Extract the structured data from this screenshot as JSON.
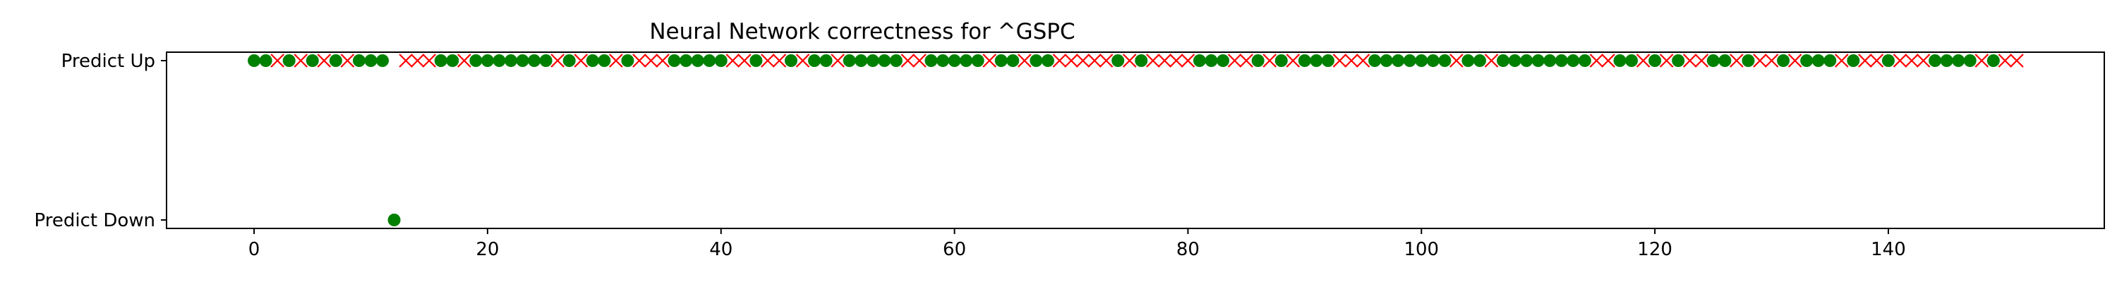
{
  "chart_data": {
    "type": "scatter",
    "title": "Neural Network correctness for ^GSPC",
    "xlabel": "",
    "ylabel": "",
    "xlim": [
      -7.5,
      158.5
    ],
    "x_ticks": [
      0,
      20,
      40,
      60,
      80,
      100,
      120,
      140
    ],
    "y_categories": [
      "Predict Down",
      "Predict Up"
    ],
    "grid": false,
    "legend": "none",
    "series": [
      {
        "marker": "circle",
        "color": "#008000",
        "points": [
          {
            "x": 0,
            "y": "Predict Up"
          },
          {
            "x": 1,
            "y": "Predict Up"
          },
          {
            "x": 3,
            "y": "Predict Up"
          },
          {
            "x": 5,
            "y": "Predict Up"
          },
          {
            "x": 7,
            "y": "Predict Up"
          },
          {
            "x": 9,
            "y": "Predict Up"
          },
          {
            "x": 10,
            "y": "Predict Up"
          },
          {
            "x": 11,
            "y": "Predict Up"
          },
          {
            "x": 12,
            "y": "Predict Down"
          },
          {
            "x": 16,
            "y": "Predict Up"
          },
          {
            "x": 17,
            "y": "Predict Up"
          },
          {
            "x": 19,
            "y": "Predict Up"
          },
          {
            "x": 20,
            "y": "Predict Up"
          },
          {
            "x": 21,
            "y": "Predict Up"
          },
          {
            "x": 22,
            "y": "Predict Up"
          },
          {
            "x": 23,
            "y": "Predict Up"
          },
          {
            "x": 24,
            "y": "Predict Up"
          },
          {
            "x": 25,
            "y": "Predict Up"
          },
          {
            "x": 27,
            "y": "Predict Up"
          },
          {
            "x": 29,
            "y": "Predict Up"
          },
          {
            "x": 30,
            "y": "Predict Up"
          },
          {
            "x": 32,
            "y": "Predict Up"
          },
          {
            "x": 36,
            "y": "Predict Up"
          },
          {
            "x": 37,
            "y": "Predict Up"
          },
          {
            "x": 38,
            "y": "Predict Up"
          },
          {
            "x": 39,
            "y": "Predict Up"
          },
          {
            "x": 40,
            "y": "Predict Up"
          },
          {
            "x": 43,
            "y": "Predict Up"
          },
          {
            "x": 46,
            "y": "Predict Up"
          },
          {
            "x": 48,
            "y": "Predict Up"
          },
          {
            "x": 49,
            "y": "Predict Up"
          },
          {
            "x": 51,
            "y": "Predict Up"
          },
          {
            "x": 52,
            "y": "Predict Up"
          },
          {
            "x": 53,
            "y": "Predict Up"
          },
          {
            "x": 54,
            "y": "Predict Up"
          },
          {
            "x": 55,
            "y": "Predict Up"
          },
          {
            "x": 58,
            "y": "Predict Up"
          },
          {
            "x": 59,
            "y": "Predict Up"
          },
          {
            "x": 60,
            "y": "Predict Up"
          },
          {
            "x": 61,
            "y": "Predict Up"
          },
          {
            "x": 62,
            "y": "Predict Up"
          },
          {
            "x": 64,
            "y": "Predict Up"
          },
          {
            "x": 65,
            "y": "Predict Up"
          },
          {
            "x": 67,
            "y": "Predict Up"
          },
          {
            "x": 68,
            "y": "Predict Up"
          },
          {
            "x": 74,
            "y": "Predict Up"
          },
          {
            "x": 76,
            "y": "Predict Up"
          },
          {
            "x": 81,
            "y": "Predict Up"
          },
          {
            "x": 82,
            "y": "Predict Up"
          },
          {
            "x": 83,
            "y": "Predict Up"
          },
          {
            "x": 86,
            "y": "Predict Up"
          },
          {
            "x": 88,
            "y": "Predict Up"
          },
          {
            "x": 90,
            "y": "Predict Up"
          },
          {
            "x": 91,
            "y": "Predict Up"
          },
          {
            "x": 92,
            "y": "Predict Up"
          },
          {
            "x": 96,
            "y": "Predict Up"
          },
          {
            "x": 97,
            "y": "Predict Up"
          },
          {
            "x": 98,
            "y": "Predict Up"
          },
          {
            "x": 99,
            "y": "Predict Up"
          },
          {
            "x": 100,
            "y": "Predict Up"
          },
          {
            "x": 101,
            "y": "Predict Up"
          },
          {
            "x": 102,
            "y": "Predict Up"
          },
          {
            "x": 104,
            "y": "Predict Up"
          },
          {
            "x": 105,
            "y": "Predict Up"
          },
          {
            "x": 107,
            "y": "Predict Up"
          },
          {
            "x": 108,
            "y": "Predict Up"
          },
          {
            "x": 109,
            "y": "Predict Up"
          },
          {
            "x": 110,
            "y": "Predict Up"
          },
          {
            "x": 111,
            "y": "Predict Up"
          },
          {
            "x": 112,
            "y": "Predict Up"
          },
          {
            "x": 113,
            "y": "Predict Up"
          },
          {
            "x": 114,
            "y": "Predict Up"
          },
          {
            "x": 117,
            "y": "Predict Up"
          },
          {
            "x": 118,
            "y": "Predict Up"
          },
          {
            "x": 120,
            "y": "Predict Up"
          },
          {
            "x": 122,
            "y": "Predict Up"
          },
          {
            "x": 125,
            "y": "Predict Up"
          },
          {
            "x": 126,
            "y": "Predict Up"
          },
          {
            "x": 128,
            "y": "Predict Up"
          },
          {
            "x": 131,
            "y": "Predict Up"
          },
          {
            "x": 133,
            "y": "Predict Up"
          },
          {
            "x": 134,
            "y": "Predict Up"
          },
          {
            "x": 135,
            "y": "Predict Up"
          },
          {
            "x": 137,
            "y": "Predict Up"
          },
          {
            "x": 140,
            "y": "Predict Up"
          },
          {
            "x": 144,
            "y": "Predict Up"
          },
          {
            "x": 145,
            "y": "Predict Up"
          },
          {
            "x": 146,
            "y": "Predict Up"
          },
          {
            "x": 147,
            "y": "Predict Up"
          },
          {
            "x": 149,
            "y": "Predict Up"
          }
        ]
      },
      {
        "marker": "x",
        "color": "#ff0000",
        "points": [
          {
            "x": 2,
            "y": "Predict Up"
          },
          {
            "x": 4,
            "y": "Predict Up"
          },
          {
            "x": 6,
            "y": "Predict Up"
          },
          {
            "x": 8,
            "y": "Predict Up"
          },
          {
            "x": 13,
            "y": "Predict Up"
          },
          {
            "x": 14,
            "y": "Predict Up"
          },
          {
            "x": 15,
            "y": "Predict Up"
          },
          {
            "x": 18,
            "y": "Predict Up"
          },
          {
            "x": 26,
            "y": "Predict Up"
          },
          {
            "x": 28,
            "y": "Predict Up"
          },
          {
            "x": 31,
            "y": "Predict Up"
          },
          {
            "x": 33,
            "y": "Predict Up"
          },
          {
            "x": 34,
            "y": "Predict Up"
          },
          {
            "x": 35,
            "y": "Predict Up"
          },
          {
            "x": 41,
            "y": "Predict Up"
          },
          {
            "x": 42,
            "y": "Predict Up"
          },
          {
            "x": 44,
            "y": "Predict Up"
          },
          {
            "x": 45,
            "y": "Predict Up"
          },
          {
            "x": 47,
            "y": "Predict Up"
          },
          {
            "x": 50,
            "y": "Predict Up"
          },
          {
            "x": 56,
            "y": "Predict Up"
          },
          {
            "x": 57,
            "y": "Predict Up"
          },
          {
            "x": 63,
            "y": "Predict Up"
          },
          {
            "x": 66,
            "y": "Predict Up"
          },
          {
            "x": 69,
            "y": "Predict Up"
          },
          {
            "x": 70,
            "y": "Predict Up"
          },
          {
            "x": 71,
            "y": "Predict Up"
          },
          {
            "x": 72,
            "y": "Predict Up"
          },
          {
            "x": 73,
            "y": "Predict Up"
          },
          {
            "x": 75,
            "y": "Predict Up"
          },
          {
            "x": 77,
            "y": "Predict Up"
          },
          {
            "x": 78,
            "y": "Predict Up"
          },
          {
            "x": 79,
            "y": "Predict Up"
          },
          {
            "x": 80,
            "y": "Predict Up"
          },
          {
            "x": 84,
            "y": "Predict Up"
          },
          {
            "x": 85,
            "y": "Predict Up"
          },
          {
            "x": 87,
            "y": "Predict Up"
          },
          {
            "x": 89,
            "y": "Predict Up"
          },
          {
            "x": 93,
            "y": "Predict Up"
          },
          {
            "x": 94,
            "y": "Predict Up"
          },
          {
            "x": 95,
            "y": "Predict Up"
          },
          {
            "x": 103,
            "y": "Predict Up"
          },
          {
            "x": 106,
            "y": "Predict Up"
          },
          {
            "x": 115,
            "y": "Predict Up"
          },
          {
            "x": 116,
            "y": "Predict Up"
          },
          {
            "x": 119,
            "y": "Predict Up"
          },
          {
            "x": 121,
            "y": "Predict Up"
          },
          {
            "x": 123,
            "y": "Predict Up"
          },
          {
            "x": 124,
            "y": "Predict Up"
          },
          {
            "x": 127,
            "y": "Predict Up"
          },
          {
            "x": 129,
            "y": "Predict Up"
          },
          {
            "x": 130,
            "y": "Predict Up"
          },
          {
            "x": 132,
            "y": "Predict Up"
          },
          {
            "x": 136,
            "y": "Predict Up"
          },
          {
            "x": 138,
            "y": "Predict Up"
          },
          {
            "x": 139,
            "y": "Predict Up"
          },
          {
            "x": 141,
            "y": "Predict Up"
          },
          {
            "x": 142,
            "y": "Predict Up"
          },
          {
            "x": 143,
            "y": "Predict Up"
          },
          {
            "x": 148,
            "y": "Predict Up"
          },
          {
            "x": 150,
            "y": "Predict Up"
          },
          {
            "x": 151,
            "y": "Predict Up"
          }
        ]
      }
    ]
  }
}
